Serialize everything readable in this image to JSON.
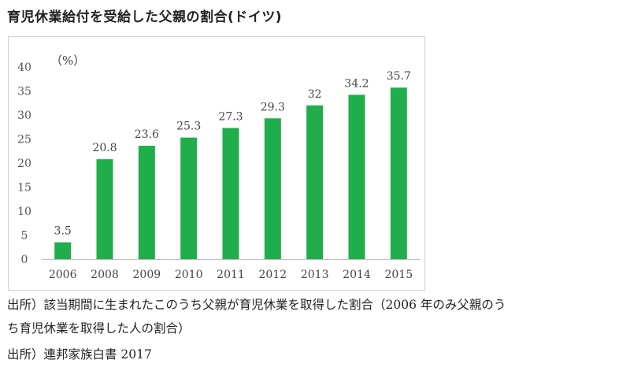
{
  "title": "育児休業給付を受給した父親の割合(ドイツ)",
  "notes": {
    "line1": "出所）該当期間に生まれたこのうち父親が育児休業を取得した割合（2006 年のみ父親のう",
    "line2": "ち育児休業を取得した人の割合）",
    "line3": "出所）連邦家族白書 2017"
  },
  "chart_data": {
    "type": "bar",
    "unit_label": "（%）",
    "categories": [
      "2006",
      "2008",
      "2009",
      "2010",
      "2011",
      "2012",
      "2013",
      "2014",
      "2015"
    ],
    "values": [
      3.5,
      20.8,
      23.6,
      25.3,
      27.3,
      29.3,
      32,
      34.2,
      35.7
    ],
    "data_labels": [
      "3.5",
      "20.8",
      "23.6",
      "25.3",
      "27.3",
      "29.3",
      "32",
      "34.2",
      "35.7"
    ],
    "ylim": [
      0,
      40
    ],
    "yticks": [
      "0",
      "5",
      "10",
      "15",
      "20",
      "25",
      "30",
      "35",
      "40"
    ],
    "grid": false,
    "legend": "none",
    "bar_color": "#1fae4b"
  }
}
